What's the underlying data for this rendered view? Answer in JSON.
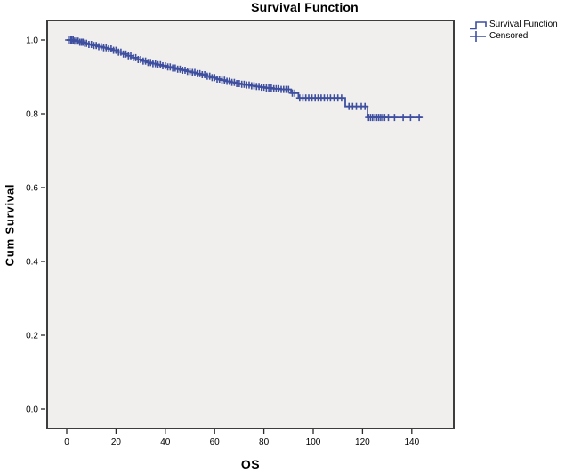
{
  "colors": {
    "curve": "#3e4fa0",
    "plot_bg": "#f0efed",
    "frame": "#3d3d3d",
    "tick": "#2a2a2a",
    "text": "#000000"
  },
  "chart_data": {
    "type": "line",
    "subtype": "kaplan-meier-survival-step",
    "title": "Survival Function",
    "xlabel": "OS",
    "ylabel": "Cum Survival",
    "xlim": [
      -8.3,
      157.8
    ],
    "ylim": [
      -0.055,
      1.055
    ],
    "x_ticks": [
      0,
      20,
      40,
      60,
      80,
      100,
      120,
      140
    ],
    "y_ticks": [
      "0.0",
      "0.2",
      "0.4",
      "0.6",
      "0.8",
      "1.0"
    ],
    "grid": false,
    "legend_position": "top-right-outside",
    "legend": [
      {
        "label": "Survival Function",
        "marker": "step-line"
      },
      {
        "label": "Censored",
        "marker": "plus"
      }
    ],
    "series": [
      {
        "name": "Survival Function",
        "color": "#3e4fa0",
        "end_t": 144,
        "steps": [
          [
            0,
            1.0
          ],
          [
            3,
            0.997
          ],
          [
            5,
            0.994
          ],
          [
            7,
            0.991
          ],
          [
            9,
            0.988
          ],
          [
            11,
            0.985
          ],
          [
            13,
            0.982
          ],
          [
            15,
            0.979
          ],
          [
            17,
            0.976
          ],
          [
            19,
            0.972
          ],
          [
            21,
            0.967
          ],
          [
            23,
            0.962
          ],
          [
            25,
            0.957
          ],
          [
            27,
            0.952
          ],
          [
            29,
            0.947
          ],
          [
            31,
            0.943
          ],
          [
            33,
            0.939
          ],
          [
            35,
            0.936
          ],
          [
            37,
            0.933
          ],
          [
            39,
            0.93
          ],
          [
            41,
            0.927
          ],
          [
            43,
            0.924
          ],
          [
            45,
            0.921
          ],
          [
            47,
            0.918
          ],
          [
            49,
            0.915
          ],
          [
            51,
            0.912
          ],
          [
            53,
            0.909
          ],
          [
            55,
            0.906
          ],
          [
            57,
            0.902
          ],
          [
            59,
            0.898
          ],
          [
            61,
            0.894
          ],
          [
            63,
            0.891
          ],
          [
            65,
            0.888
          ],
          [
            67,
            0.885
          ],
          [
            69,
            0.882
          ],
          [
            71,
            0.88
          ],
          [
            73,
            0.878
          ],
          [
            75,
            0.876
          ],
          [
            77,
            0.874
          ],
          [
            79,
            0.872
          ],
          [
            81,
            0.87
          ],
          [
            84,
            0.868
          ],
          [
            87,
            0.866
          ],
          [
            91,
            0.856
          ],
          [
            94,
            0.843
          ],
          [
            113,
            0.82
          ],
          [
            122,
            0.79
          ]
        ]
      }
    ],
    "censored_t": [
      0.8,
      1.5,
      2,
      2.6,
      3.2,
      4,
      4.6,
      5.3,
      6,
      6.6,
      7.3,
      8,
      9,
      10,
      11,
      12,
      13,
      14,
      15,
      16,
      17,
      18,
      19,
      20,
      21,
      22,
      23,
      24,
      25,
      26,
      27,
      28,
      29,
      30,
      31,
      32,
      33,
      34,
      35,
      36,
      37,
      38,
      39,
      40,
      41,
      42,
      43,
      44,
      45,
      46,
      47,
      48,
      49,
      50,
      51,
      52,
      53,
      54,
      55,
      56,
      57,
      58,
      59,
      60,
      61,
      62,
      63,
      64,
      65,
      66,
      67,
      68,
      69,
      70,
      71,
      72,
      73,
      74,
      75,
      76,
      77,
      78,
      79,
      80,
      81,
      82,
      83,
      84,
      85,
      86,
      87,
      88,
      89,
      90,
      91.5,
      92.5,
      94.5,
      95.8,
      97,
      98.2,
      99.5,
      100.8,
      102,
      103.2,
      104.5,
      105.8,
      107,
      108.5,
      110,
      111.5,
      114.5,
      116,
      117.5,
      119.5,
      121,
      122.5,
      123.3,
      124.1,
      125,
      125.8,
      126.6,
      127.4,
      128.2,
      129,
      130.5,
      133,
      136.5,
      139.5,
      143
    ]
  }
}
